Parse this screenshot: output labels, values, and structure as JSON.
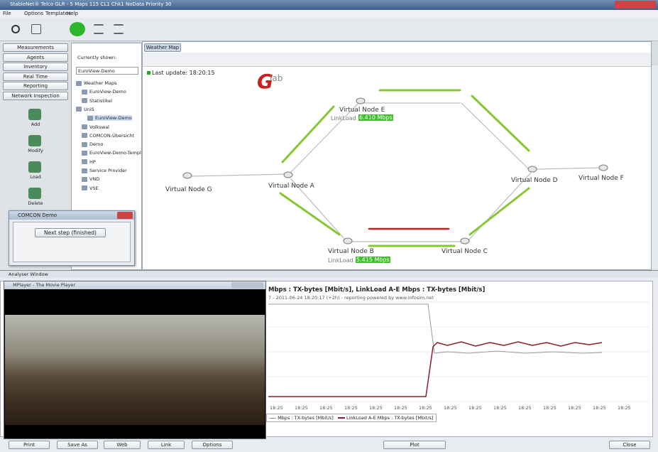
{
  "window": {
    "title": "StableNet® Telco GLR - 5 Maps 115 CL1 Chk1 NoData Priority 30"
  },
  "menu": [
    "File",
    "Options",
    "Templates",
    "Help"
  ],
  "nav": [
    "Measurements",
    "Agents",
    "Inventory",
    "Real Time",
    "Reporting",
    "Network Inspection"
  ],
  "actions": [
    "Add",
    "Modify",
    "Load",
    "Delete"
  ],
  "tab": "Weather Map",
  "tree": {
    "label": "Currently shown:",
    "current": "EuroView-Demo",
    "items": [
      "Weather Maps",
      "EuroView-Demo",
      "Statistikel",
      "UniS",
      "EuroView-Demo",
      "Volkswal",
      "COMCON-Übersicht",
      "Demo",
      "EuroView-Demo-Templ",
      "HP",
      "Service Provider",
      "VND",
      "VSE"
    ]
  },
  "map": {
    "last_update": "Last update: 18:20:15",
    "logo": "lab",
    "nodes": [
      "Virtual Node E",
      "Virtual Node G",
      "Virtual Node A",
      "Virtual Node D",
      "Virtual Node F",
      "Virtual Node B",
      "Virtual Node C"
    ],
    "link_loads": [
      {
        "label": "LinkLoad",
        "value": "6.410 Mbps"
      },
      {
        "label": "LinkLoad",
        "value": "5.415 Mbps"
      }
    ]
  },
  "dialog": {
    "title": "COMCON Demo",
    "button": "Next step (finished)"
  },
  "analyser": {
    "title": "Analyser Window",
    "chart_title": "Mbps : TX-bytes [Mbit/s], LinkLoad A-E Mbps : TX-bytes [Mbit/s]",
    "chart_subtitle": "7 - 2011-06-24 18:20:17 (+2h) - reporting powered by www.infosim.net",
    "x_labels": [
      "18:25",
      "18:25",
      "18:25",
      "18:25",
      "18:25",
      "18:25",
      "18:25",
      "18:25",
      "18:25",
      "18:25",
      "18:25",
      "18:25",
      "18:25",
      "18:25",
      "18:25"
    ],
    "legend": [
      "Mbps : TX-bytes [Mbit/s]",
      "LinkLoad A-E Mbps : TX-bytes [Mbit/s]"
    ],
    "buttons": [
      "Print",
      "Save As",
      "Web",
      "Link",
      "Options",
      "Plot",
      "Close"
    ]
  },
  "player": {
    "title": "MPlayer - The Movie Player"
  }
}
